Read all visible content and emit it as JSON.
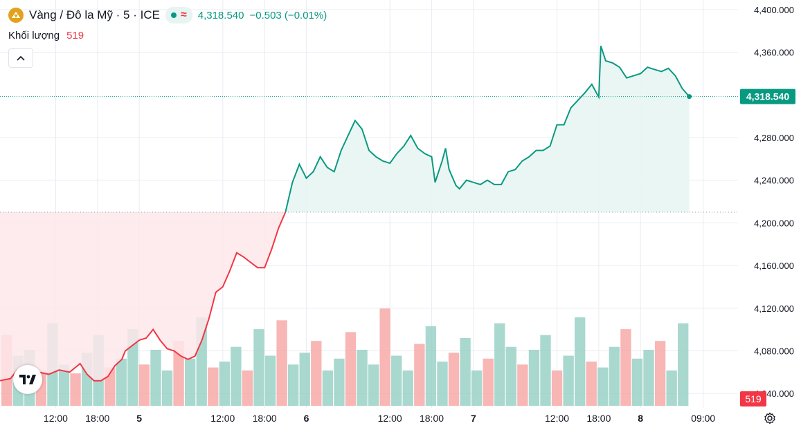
{
  "header": {
    "symbol_title": "Vàng / Đô la Mỹ · 5 · ICE",
    "status_symbol": "≈",
    "last_price": "4,318.540",
    "change": "−0.503 (−0.01%)",
    "volume_label": "Khối lượng",
    "volume_value": "519",
    "collapse_glyph": "^"
  },
  "icons": [
    "gold-coin-icon",
    "market-open-dot-icon",
    "tradingview-logo-icon",
    "settings-gear-icon",
    "chevron-up-icon"
  ],
  "colors": {
    "up": "#089981",
    "down": "#f23645",
    "grid": "#e9ecf2",
    "up_fill": "#e7f5f2",
    "down_fill": "#fde7ea"
  },
  "chart_data": {
    "type": "line",
    "ylim": [
      4020,
      4400
    ],
    "y_ticks": [
      4400,
      4360,
      4280,
      4240,
      4200,
      4160,
      4120,
      4080,
      4040
    ],
    "y_tick_labels": [
      "4,400.000",
      "4,360.000",
      "4,280.000",
      "4,240.000",
      "4,200.000",
      "4,160.000",
      "4,120.000",
      "4,080.000",
      "4,040.000"
    ],
    "x_labels": [
      "12:00",
      "18:00",
      "5",
      "12:00",
      "18:00",
      "6",
      "12:00",
      "18:00",
      "7",
      "12:00",
      "18:00",
      "8",
      "09:00"
    ],
    "x_label_hours": [
      12,
      18,
      24,
      36,
      42,
      48,
      60,
      66,
      72,
      84,
      90,
      96,
      105
    ],
    "x_range_hours": [
      4,
      110
    ],
    "reference_price": 4210,
    "current_price": 4318.54,
    "current_price_label": "4,318.540",
    "volume_current": 519,
    "volume_current_label": "519",
    "series": [
      {
        "points": [
          [
            4,
            4052
          ],
          [
            5.5,
            4054
          ],
          [
            6.5,
            4062
          ],
          [
            7.5,
            4055
          ],
          [
            9.5,
            4060
          ],
          [
            11,
            4058
          ],
          [
            12.5,
            4062
          ],
          [
            14,
            4060
          ],
          [
            15.5,
            4068
          ],
          [
            16.5,
            4058
          ],
          [
            17.5,
            4052
          ],
          [
            18.5,
            4052
          ],
          [
            19.5,
            4056
          ],
          [
            20.5,
            4066
          ],
          [
            21.5,
            4072
          ],
          [
            22,
            4080
          ],
          [
            23,
            4085
          ],
          [
            24,
            4090
          ],
          [
            25,
            4092
          ],
          [
            26,
            4100
          ],
          [
            27,
            4090
          ],
          [
            28,
            4082
          ],
          [
            29,
            4080
          ],
          [
            30,
            4075
          ],
          [
            31,
            4072
          ],
          [
            32,
            4075
          ],
          [
            33,
            4090
          ],
          [
            34,
            4110
          ],
          [
            35,
            4135
          ],
          [
            36,
            4140
          ],
          [
            37,
            4155
          ],
          [
            38,
            4172
          ],
          [
            39,
            4168
          ],
          [
            40,
            4163
          ],
          [
            41,
            4158
          ],
          [
            42,
            4158
          ],
          [
            43,
            4175
          ],
          [
            44,
            4195
          ],
          [
            45,
            4210
          ],
          [
            46,
            4238
          ],
          [
            47,
            4255
          ],
          [
            48,
            4242
          ],
          [
            49,
            4248
          ],
          [
            50,
            4262
          ],
          [
            51,
            4252
          ],
          [
            52,
            4248
          ],
          [
            53,
            4268
          ],
          [
            54,
            4282
          ],
          [
            55,
            4296
          ],
          [
            56,
            4288
          ],
          [
            57,
            4268
          ],
          [
            58,
            4262
          ],
          [
            59,
            4258
          ],
          [
            60,
            4256
          ],
          [
            61,
            4265
          ],
          [
            62,
            4272
          ],
          [
            63,
            4282
          ],
          [
            64,
            4270
          ],
          [
            65,
            4265
          ],
          [
            66,
            4262
          ],
          [
            66.5,
            4238
          ],
          [
            67.5,
            4258
          ],
          [
            68,
            4270
          ],
          [
            68.5,
            4250
          ],
          [
            69.5,
            4235
          ],
          [
            70,
            4232
          ],
          [
            71,
            4240
          ],
          [
            72,
            4238
          ],
          [
            73,
            4236
          ],
          [
            74,
            4240
          ],
          [
            75,
            4236
          ],
          [
            76,
            4236
          ],
          [
            77,
            4248
          ],
          [
            78,
            4250
          ],
          [
            79,
            4258
          ],
          [
            80,
            4262
          ],
          [
            81,
            4268
          ],
          [
            82,
            4268
          ],
          [
            83,
            4272
          ],
          [
            84,
            4292
          ],
          [
            85,
            4292
          ],
          [
            86,
            4308
          ],
          [
            87,
            4315
          ],
          [
            88,
            4322
          ],
          [
            89,
            4330
          ],
          [
            90,
            4318
          ],
          [
            90.3,
            4366
          ],
          [
            91,
            4352
          ],
          [
            92,
            4350
          ],
          [
            93,
            4346
          ],
          [
            94,
            4336
          ],
          [
            95,
            4338
          ],
          [
            96,
            4340
          ],
          [
            97,
            4346
          ],
          [
            98,
            4344
          ],
          [
            99,
            4342
          ],
          [
            100,
            4345
          ],
          [
            101,
            4338
          ],
          [
            102,
            4326
          ],
          [
            103,
            4318.54
          ]
        ]
      }
    ],
    "volume": [
      120,
      85,
      95,
      60,
      140,
      70,
      55,
      90,
      120,
      65,
      80,
      130,
      70,
      95,
      60,
      110,
      80,
      150,
      65,
      75,
      100,
      60,
      130,
      85,
      145,
      70,
      90,
      110,
      60,
      80,
      125,
      95,
      70,
      165,
      85,
      60,
      105,
      135,
      75,
      90,
      115,
      60,
      80,
      140,
      100,
      70,
      95,
      120,
      60,
      85,
      150,
      75,
      65,
      100,
      130,
      80,
      95,
      110,
      60,
      140
    ]
  }
}
